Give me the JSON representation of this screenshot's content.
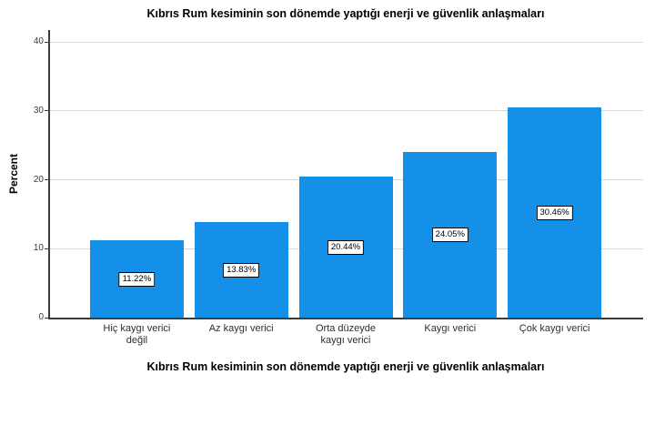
{
  "chart_data": {
    "type": "bar",
    "title": "Kıbrıs Rum kesiminin son dönemde yaptığı enerji ve güvenlik anlaşmaları",
    "xlabel": "Kıbrıs Rum kesiminin son dönemde yaptığı enerji ve güvenlik anlaşmaları",
    "ylabel": "Percent",
    "categories": [
      "Hiç kaygı verici değil",
      "Az kaygı verici",
      "Orta düzeyde kaygı verici",
      "Kaygı verici",
      "Çok kaygı verici"
    ],
    "category_lines": [
      [
        "Hiç kaygı verici",
        "değil"
      ],
      [
        "Az kaygı verici"
      ],
      [
        "Orta düzeyde",
        "kaygı verici"
      ],
      [
        "Kaygı verici"
      ],
      [
        "Çok kaygı verici"
      ]
    ],
    "values": [
      11.22,
      13.83,
      20.44,
      24.05,
      30.46
    ],
    "value_labels": [
      "11.22%",
      "13.83%",
      "20.44%",
      "24.05%",
      "30.46%"
    ],
    "ylim": [
      0,
      40
    ],
    "yticks": [
      0,
      10,
      20,
      30,
      40
    ],
    "grid": true,
    "legend": false,
    "colors": {
      "bar": "#1490E8",
      "gridline": "#D9D9D9",
      "axis": "#3C3C3C",
      "value_label_bg": "#FFFFFF",
      "value_label_border": "#000000"
    }
  }
}
